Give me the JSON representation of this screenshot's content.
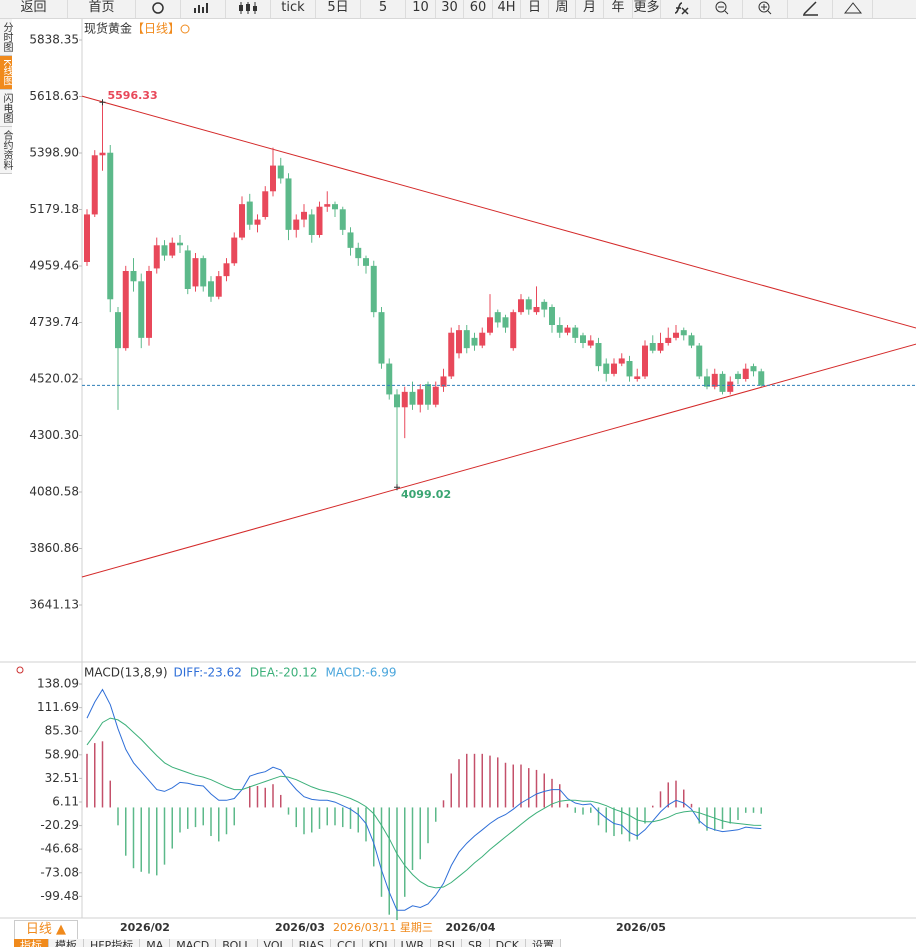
{
  "ui": {
    "toolbar": [
      "返回",
      "首页",
      "tick",
      "5日",
      "5",
      "10",
      "30",
      "60",
      "4H",
      "日",
      "周",
      "月",
      "年",
      "更多"
    ],
    "sidebar": [
      "分时图",
      "K线图",
      "闪电图",
      "合约资料"
    ],
    "period": "日线 ▲",
    "bottom_tabs": [
      "指标",
      "模板",
      "HFP指标",
      "MA",
      "MACD",
      "BOLL",
      "VOL",
      "BIAS",
      "CCI",
      "KDJ",
      "LWR",
      "RSI",
      "SR",
      "DCK",
      "设置"
    ]
  },
  "chart_data": [
    {
      "type": "candlestick",
      "title": "现货黄金",
      "subtitle": "【日线】",
      "crosshair_label": "2026/03/11 星期三",
      "up_color": "#e8485a",
      "down_color": "#5cb98a",
      "categories": [
        null,
        null,
        null,
        null,
        "2026/02",
        null,
        null,
        null,
        null,
        null,
        null,
        null,
        null,
        null,
        null,
        null,
        null,
        null,
        null,
        null,
        null,
        null,
        null,
        null,
        "2026/03",
        null,
        null,
        null,
        null,
        null,
        null,
        null,
        null,
        null,
        null,
        null,
        null,
        null,
        null,
        null,
        null,
        null,
        null,
        null,
        null,
        null,
        "2026/04",
        null,
        null,
        null,
        null,
        null,
        null,
        null,
        null,
        null,
        null,
        null,
        null,
        null,
        null,
        null,
        null,
        null,
        null,
        null,
        null,
        null,
        "2026/05",
        null,
        null,
        null,
        null,
        null,
        null,
        null,
        null,
        null,
        null,
        null,
        null,
        null,
        null,
        null,
        null,
        null,
        null,
        null
      ],
      "ohlc": [
        [
          4975,
          5180,
          4960,
          5160
        ],
        [
          5160,
          5410,
          5150,
          5390
        ],
        [
          5390,
          5596.33,
          5330,
          5400
        ],
        [
          5400,
          5430,
          4780,
          4830
        ],
        [
          4780,
          4800,
          4400,
          4640
        ],
        [
          4640,
          4960,
          4630,
          4940
        ],
        [
          4940,
          4990,
          4860,
          4900
        ],
        [
          4900,
          4930,
          4640,
          4680
        ],
        [
          4680,
          4960,
          4650,
          4940
        ],
        [
          4950,
          5070,
          4930,
          5040
        ],
        [
          5040,
          5060,
          4980,
          5000
        ],
        [
          5000,
          5070,
          4990,
          5050
        ],
        [
          5050,
          5080,
          5010,
          5040
        ],
        [
          5020,
          5040,
          4850,
          4870
        ],
        [
          4880,
          5010,
          4860,
          4990
        ],
        [
          4990,
          5000,
          4860,
          4880
        ],
        [
          4900,
          4920,
          4820,
          4840
        ],
        [
          4840,
          4940,
          4830,
          4920
        ],
        [
          4920,
          4990,
          4900,
          4970
        ],
        [
          4970,
          5090,
          4960,
          5070
        ],
        [
          5070,
          5230,
          5060,
          5200
        ],
        [
          5210,
          5240,
          5100,
          5120
        ],
        [
          5120,
          5160,
          5090,
          5140
        ],
        [
          5150,
          5270,
          5140,
          5250
        ],
        [
          5250,
          5420,
          5230,
          5350
        ],
        [
          5350,
          5380,
          5280,
          5300
        ],
        [
          5300,
          5320,
          5060,
          5100
        ],
        [
          5100,
          5160,
          5070,
          5140
        ],
        [
          5140,
          5200,
          5110,
          5170
        ],
        [
          5160,
          5180,
          5050,
          5080
        ],
        [
          5080,
          5210,
          5070,
          5190
        ],
        [
          5190,
          5250,
          5170,
          5200
        ],
        [
          5200,
          5210,
          5150,
          5180
        ],
        [
          5180,
          5190,
          5080,
          5100
        ],
        [
          5090,
          5110,
          5000,
          5030
        ],
        [
          5030,
          5050,
          4960,
          4990
        ],
        [
          4990,
          5000,
          4930,
          4960
        ],
        [
          4960,
          4980,
          4760,
          4780
        ],
        [
          4780,
          4800,
          4560,
          4580
        ],
        [
          4580,
          4600,
          4440,
          4460
        ],
        [
          4460,
          4480,
          4099.02,
          4410
        ],
        [
          4410,
          4490,
          4290,
          4470
        ],
        [
          4470,
          4510,
          4400,
          4420
        ],
        [
          4420,
          4500,
          4390,
          4480
        ],
        [
          4500,
          4510,
          4400,
          4420
        ],
        [
          4420,
          4510,
          4410,
          4490
        ],
        [
          4490,
          4560,
          4470,
          4530
        ],
        [
          4530,
          4720,
          4520,
          4700
        ],
        [
          4620,
          4730,
          4600,
          4710
        ],
        [
          4710,
          4730,
          4620,
          4640
        ],
        [
          4680,
          4700,
          4630,
          4650
        ],
        [
          4650,
          4720,
          4640,
          4700
        ],
        [
          4700,
          4850,
          4690,
          4760
        ],
        [
          4780,
          4790,
          4720,
          4740
        ],
        [
          4760,
          4770,
          4700,
          4720
        ],
        [
          4640,
          4790,
          4630,
          4780
        ],
        [
          4780,
          4850,
          4770,
          4830
        ],
        [
          4830,
          4840,
          4770,
          4790
        ],
        [
          4780,
          4880,
          4770,
          4800
        ],
        [
          4820,
          4830,
          4760,
          4790
        ],
        [
          4800,
          4810,
          4700,
          4730
        ],
        [
          4730,
          4760,
          4680,
          4700
        ],
        [
          4700,
          4730,
          4690,
          4720
        ],
        [
          4720,
          4730,
          4660,
          4680
        ],
        [
          4690,
          4700,
          4640,
          4660
        ],
        [
          4650,
          4690,
          4640,
          4670
        ],
        [
          4660,
          4680,
          4550,
          4570
        ],
        [
          4580,
          4600,
          4510,
          4540
        ],
        [
          4540,
          4600,
          4530,
          4580
        ],
        [
          4580,
          4620,
          4570,
          4600
        ],
        [
          4590,
          4610,
          4510,
          4530
        ],
        [
          4520,
          4560,
          4510,
          4530
        ],
        [
          4530,
          4670,
          4520,
          4650
        ],
        [
          4660,
          4690,
          4620,
          4630
        ],
        [
          4630,
          4700,
          4620,
          4660
        ],
        [
          4660,
          4720,
          4650,
          4680
        ],
        [
          4680,
          4730,
          4670,
          4700
        ],
        [
          4710,
          4720,
          4670,
          4690
        ],
        [
          4690,
          4700,
          4640,
          4650
        ],
        [
          4650,
          4660,
          4520,
          4530
        ],
        [
          4530,
          4560,
          4480,
          4490
        ],
        [
          4490,
          4560,
          4480,
          4540
        ],
        [
          4540,
          4550,
          4460,
          4470
        ],
        [
          4470,
          4530,
          4460,
          4510
        ],
        [
          4540,
          4550,
          4500,
          4520
        ],
        [
          4520,
          4580,
          4510,
          4560
        ],
        [
          4570,
          4580,
          4530,
          4550
        ],
        [
          4550,
          4560,
          4490,
          4495
        ]
      ],
      "ylim": [
        3427.2,
        5923.9
      ],
      "yticks": [
        5838.35,
        5618.63,
        {
          "value": 5398.9,
          "label": "5398.90"
        },
        5179.18,
        4959.46,
        4739.74,
        4520.02,
        {
          "value": 4300.3,
          "label": "4300.30"
        },
        4080.58,
        3860.86,
        3641.13
      ],
      "trendlines": [
        {
          "color": "#d42a2a",
          "x": [
            -0.65,
            107.0
          ],
          "y": [
            5620,
            4718
          ]
        },
        {
          "color": "#d42a2a",
          "x": [
            -0.65,
            107.0
          ],
          "y": [
            3750,
            4656
          ]
        }
      ],
      "last_line_color": "#2f7fb8"
    },
    {
      "type": "macd",
      "title": "MACD(13,8,9)",
      "series": [
        {
          "name": "DIFF:-23.62",
          "color": "#2f6fd8",
          "values": [
            100,
            118,
            132,
            115,
            88,
            65,
            50,
            40,
            30,
            20,
            18,
            22,
            28,
            27,
            25,
            24,
            15,
            8,
            8,
            10,
            20,
            35,
            38,
            40,
            45,
            42,
            30,
            20,
            12,
            9,
            8,
            8,
            6,
            2,
            -2,
            -8,
            -18,
            -40,
            -70,
            -95,
            -115,
            -115,
            -110,
            -112,
            -108,
            -98,
            -85,
            -65,
            -50,
            -40,
            -32,
            -25,
            -18,
            -12,
            -8,
            -2,
            5,
            10,
            15,
            18,
            20,
            20,
            10,
            5,
            3,
            4,
            -5,
            -12,
            -18,
            -20,
            -28,
            -32,
            -25,
            -15,
            -5,
            3,
            8,
            5,
            -2,
            -15,
            -22,
            -25,
            -27,
            -26,
            -25,
            -22,
            -23,
            -23.62
          ]
        },
        {
          "name": "DEA:-20.12",
          "color": "#3cb07a",
          "values": [
            70,
            82,
            95,
            100,
            98,
            92,
            84,
            76,
            67,
            58,
            50,
            45,
            42,
            39,
            36,
            34,
            31,
            27,
            23,
            20,
            20,
            23,
            26,
            29,
            32,
            35,
            34,
            31,
            27,
            23,
            20,
            18,
            16,
            13,
            10,
            6,
            1,
            -7,
            -20,
            -35,
            -52,
            -65,
            -75,
            -83,
            -88,
            -90,
            -89,
            -84,
            -77,
            -70,
            -62,
            -55,
            -47,
            -40,
            -33,
            -26,
            -19,
            -12,
            -6,
            -1,
            4,
            7,
            8,
            8,
            7,
            7,
            5,
            2,
            -2,
            -5,
            -9,
            -14,
            -16,
            -16,
            -14,
            -11,
            -7,
            -5,
            -4,
            -6,
            -9,
            -12,
            -15,
            -17,
            -18,
            -19,
            -20,
            -20.12
          ]
        },
        {
          "name": "MACD:-6.99",
          "color": "#4aa6dc",
          "up_color": "#c4506a",
          "down_color": "#5cb98a",
          "values": [
            60,
            72,
            74,
            30,
            -20,
            -54,
            -68,
            -72,
            -74,
            -76,
            -64,
            -46,
            -28,
            -24,
            -22,
            -20,
            -32,
            -38,
            -30,
            -20,
            0,
            24,
            24,
            22,
            26,
            14,
            -8,
            -22,
            -30,
            -28,
            -24,
            -20,
            -20,
            -22,
            -24,
            -28,
            -38,
            -66,
            -100,
            -120,
            -126,
            -100,
            -70,
            -58,
            -40,
            -16,
            8,
            38,
            54,
            60,
            60,
            60,
            58,
            56,
            50,
            48,
            48,
            44,
            42,
            38,
            32,
            26,
            4,
            -6,
            -8,
            -6,
            -20,
            -28,
            -32,
            -30,
            -38,
            -36,
            -18,
            2,
            18,
            28,
            30,
            20,
            4,
            -18,
            -26,
            -26,
            -24,
            -18,
            -14,
            -6,
            -6,
            -6.99
          ]
        }
      ],
      "ylim": [
        -123.7,
        142.6
      ],
      "yticks": [
        138.09,
        111.69,
        {
          "value": 85.3,
          "label": "85.30"
        },
        {
          "value": 58.9,
          "label": "58.90"
        },
        32.51,
        6.11,
        -20.29,
        -46.68,
        -73.08,
        -99.48
      ]
    }
  ]
}
